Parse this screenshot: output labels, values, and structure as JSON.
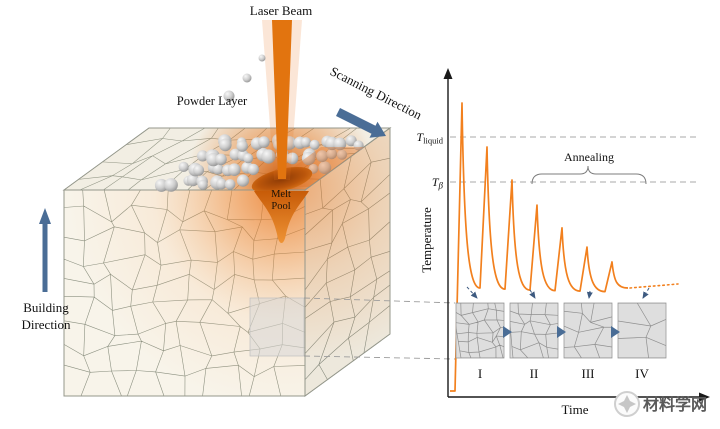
{
  "left_diagram": {
    "laser_beam_label": "Laser Beam",
    "powder_layer_label": "Powder Layer",
    "scanning_direction_label": "Scanning Direction",
    "melt_pool_label": {
      "line1": "Melt",
      "line2": "Pool"
    },
    "building_direction_label": {
      "line1": "Building",
      "line2": "Direction"
    }
  },
  "plot": {
    "y_axis_label": "Temperature",
    "x_axis_label": "Time",
    "t_liquid": {
      "symbol": "T",
      "subscript": "liquid"
    },
    "t_beta": {
      "symbol": "T",
      "subscript": "β"
    },
    "annealing_label": "Annealing",
    "stage_labels": [
      "I",
      "II",
      "III",
      "IV"
    ]
  },
  "watermark": {
    "text": "材料学网"
  },
  "colors": {
    "laser_orange": "#E2740F",
    "curve_orange": "#F2801E",
    "arrow_blue": "#4A6D96",
    "arrow_navy": "#3D5A80",
    "dashed_gray": "#9C9C9C",
    "grain_line": "#8B9080",
    "face_front": "#F8F4EA",
    "face_top": "#F2EEE3",
    "face_side": "#EDE8DC",
    "inset_bg": "#DEDEDE"
  },
  "chart_data": {
    "type": "line",
    "title": "",
    "xlabel": "Time",
    "ylabel": "Temperature",
    "legend": [],
    "grid": false,
    "reference_lines": [
      {
        "label": "T_liquid",
        "value_relative": 1.0
      },
      {
        "label": "T_β",
        "value_relative": 0.824
      }
    ],
    "annotation": "Annealing",
    "stages": [
      "I",
      "II",
      "III",
      "IV"
    ],
    "series": [
      {
        "name": "laser-thermal-cycles",
        "description": "Successive melting/annealing temperature spikes with decreasing peak temperature, dotted tail at end",
        "peaks_relative": [
          1.133,
          0.961,
          0.832,
          0.734,
          0.645,
          0.57,
          0.512
        ],
        "valleys_relative": [
          0.41,
          0.406,
          0.402,
          0.4,
          0.398,
          0.396,
          0.394
        ],
        "tail_relative": 0.41,
        "style": "solid-then-dotted"
      }
    ]
  }
}
